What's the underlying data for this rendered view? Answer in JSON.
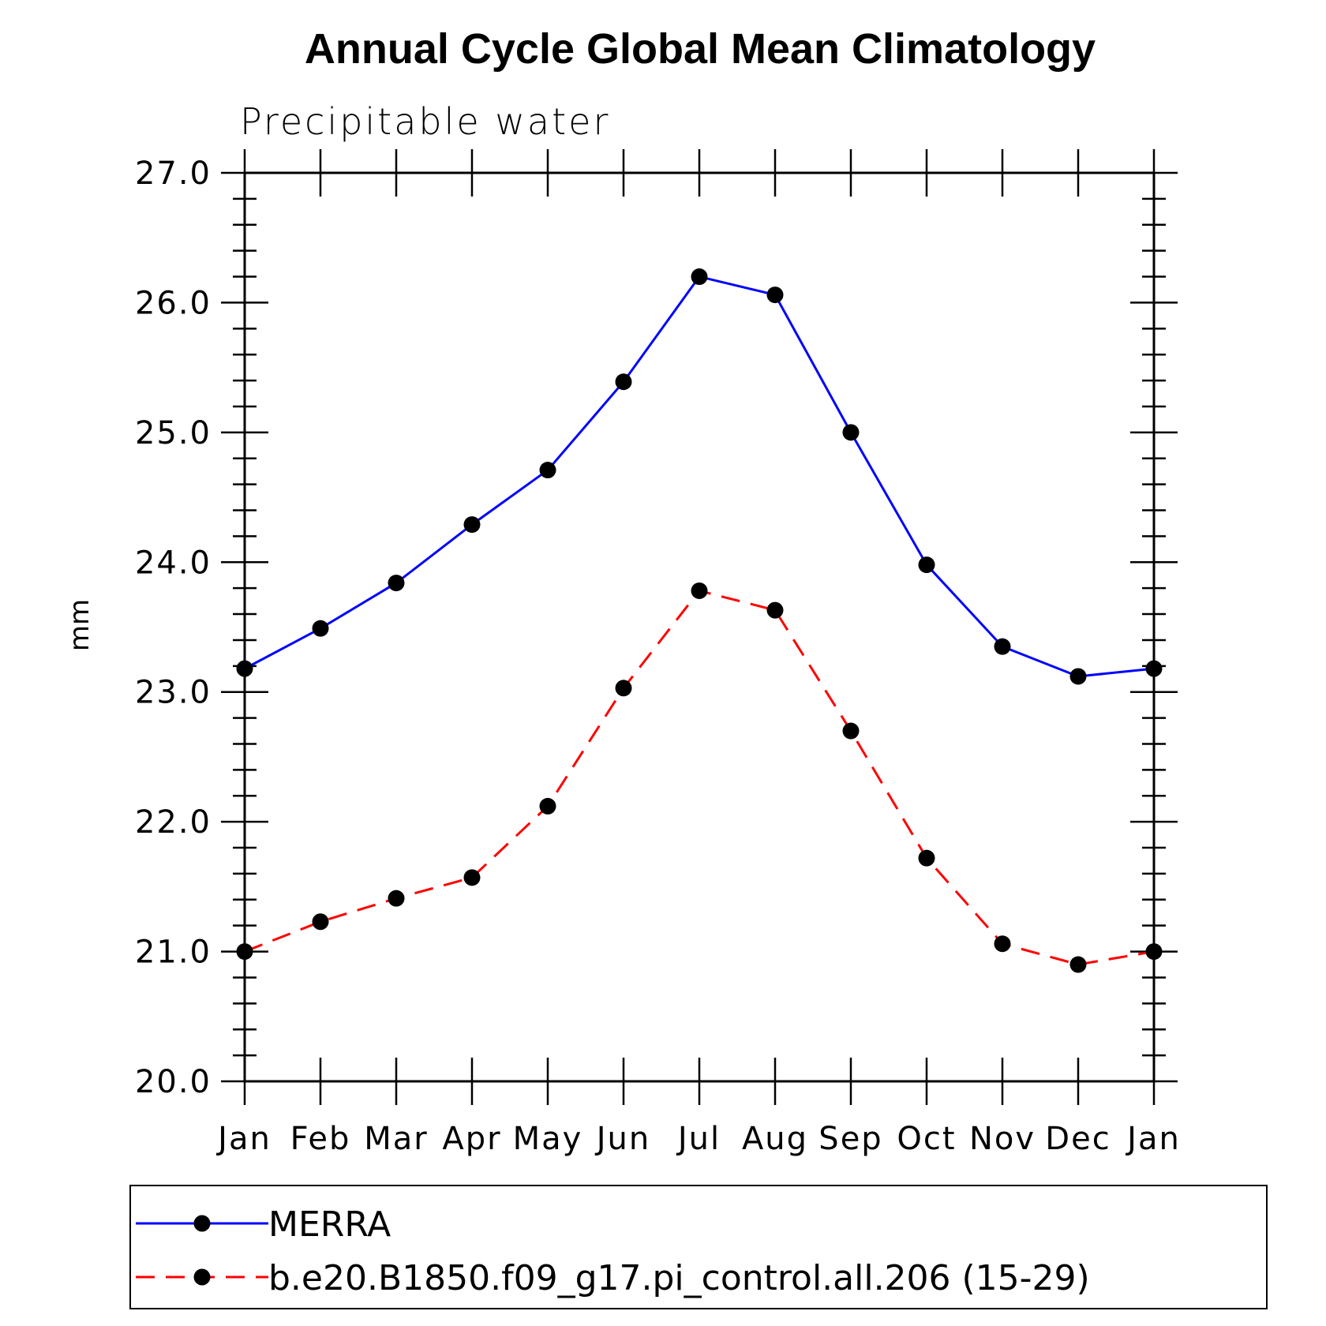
{
  "chart_data": {
    "type": "line",
    "title": "Annual Cycle Global Mean Climatology",
    "subtitle": "Precipitable water",
    "xlabel": "",
    "ylabel": "mm",
    "categories": [
      "Jan",
      "Feb",
      "Mar",
      "Apr",
      "May",
      "Jun",
      "Jul",
      "Aug",
      "Sep",
      "Oct",
      "Nov",
      "Dec",
      "Jan"
    ],
    "ylim": [
      20.0,
      27.0
    ],
    "yticks": [
      "20.0",
      "21.0",
      "22.0",
      "23.0",
      "24.0",
      "25.0",
      "26.0",
      "27.0"
    ],
    "series": [
      {
        "name": "MERRA",
        "color": "#0000ff",
        "dash": "solid",
        "marker": "filled-circle",
        "values": [
          23.18,
          23.49,
          23.84,
          24.29,
          24.71,
          25.39,
          26.2,
          26.06,
          25.0,
          23.98,
          23.35,
          23.12,
          23.18
        ]
      },
      {
        "name": "b.e20.B1850.f09_g17.pi_control.all.206 (15-29)",
        "color": "#ff0000",
        "dash": "dashed",
        "marker": "filled-circle",
        "values": [
          21.0,
          21.23,
          21.41,
          21.57,
          22.12,
          23.03,
          23.78,
          23.63,
          22.7,
          21.72,
          21.06,
          20.9,
          21.0
        ]
      }
    ],
    "grid": false,
    "legend": "bottom"
  }
}
